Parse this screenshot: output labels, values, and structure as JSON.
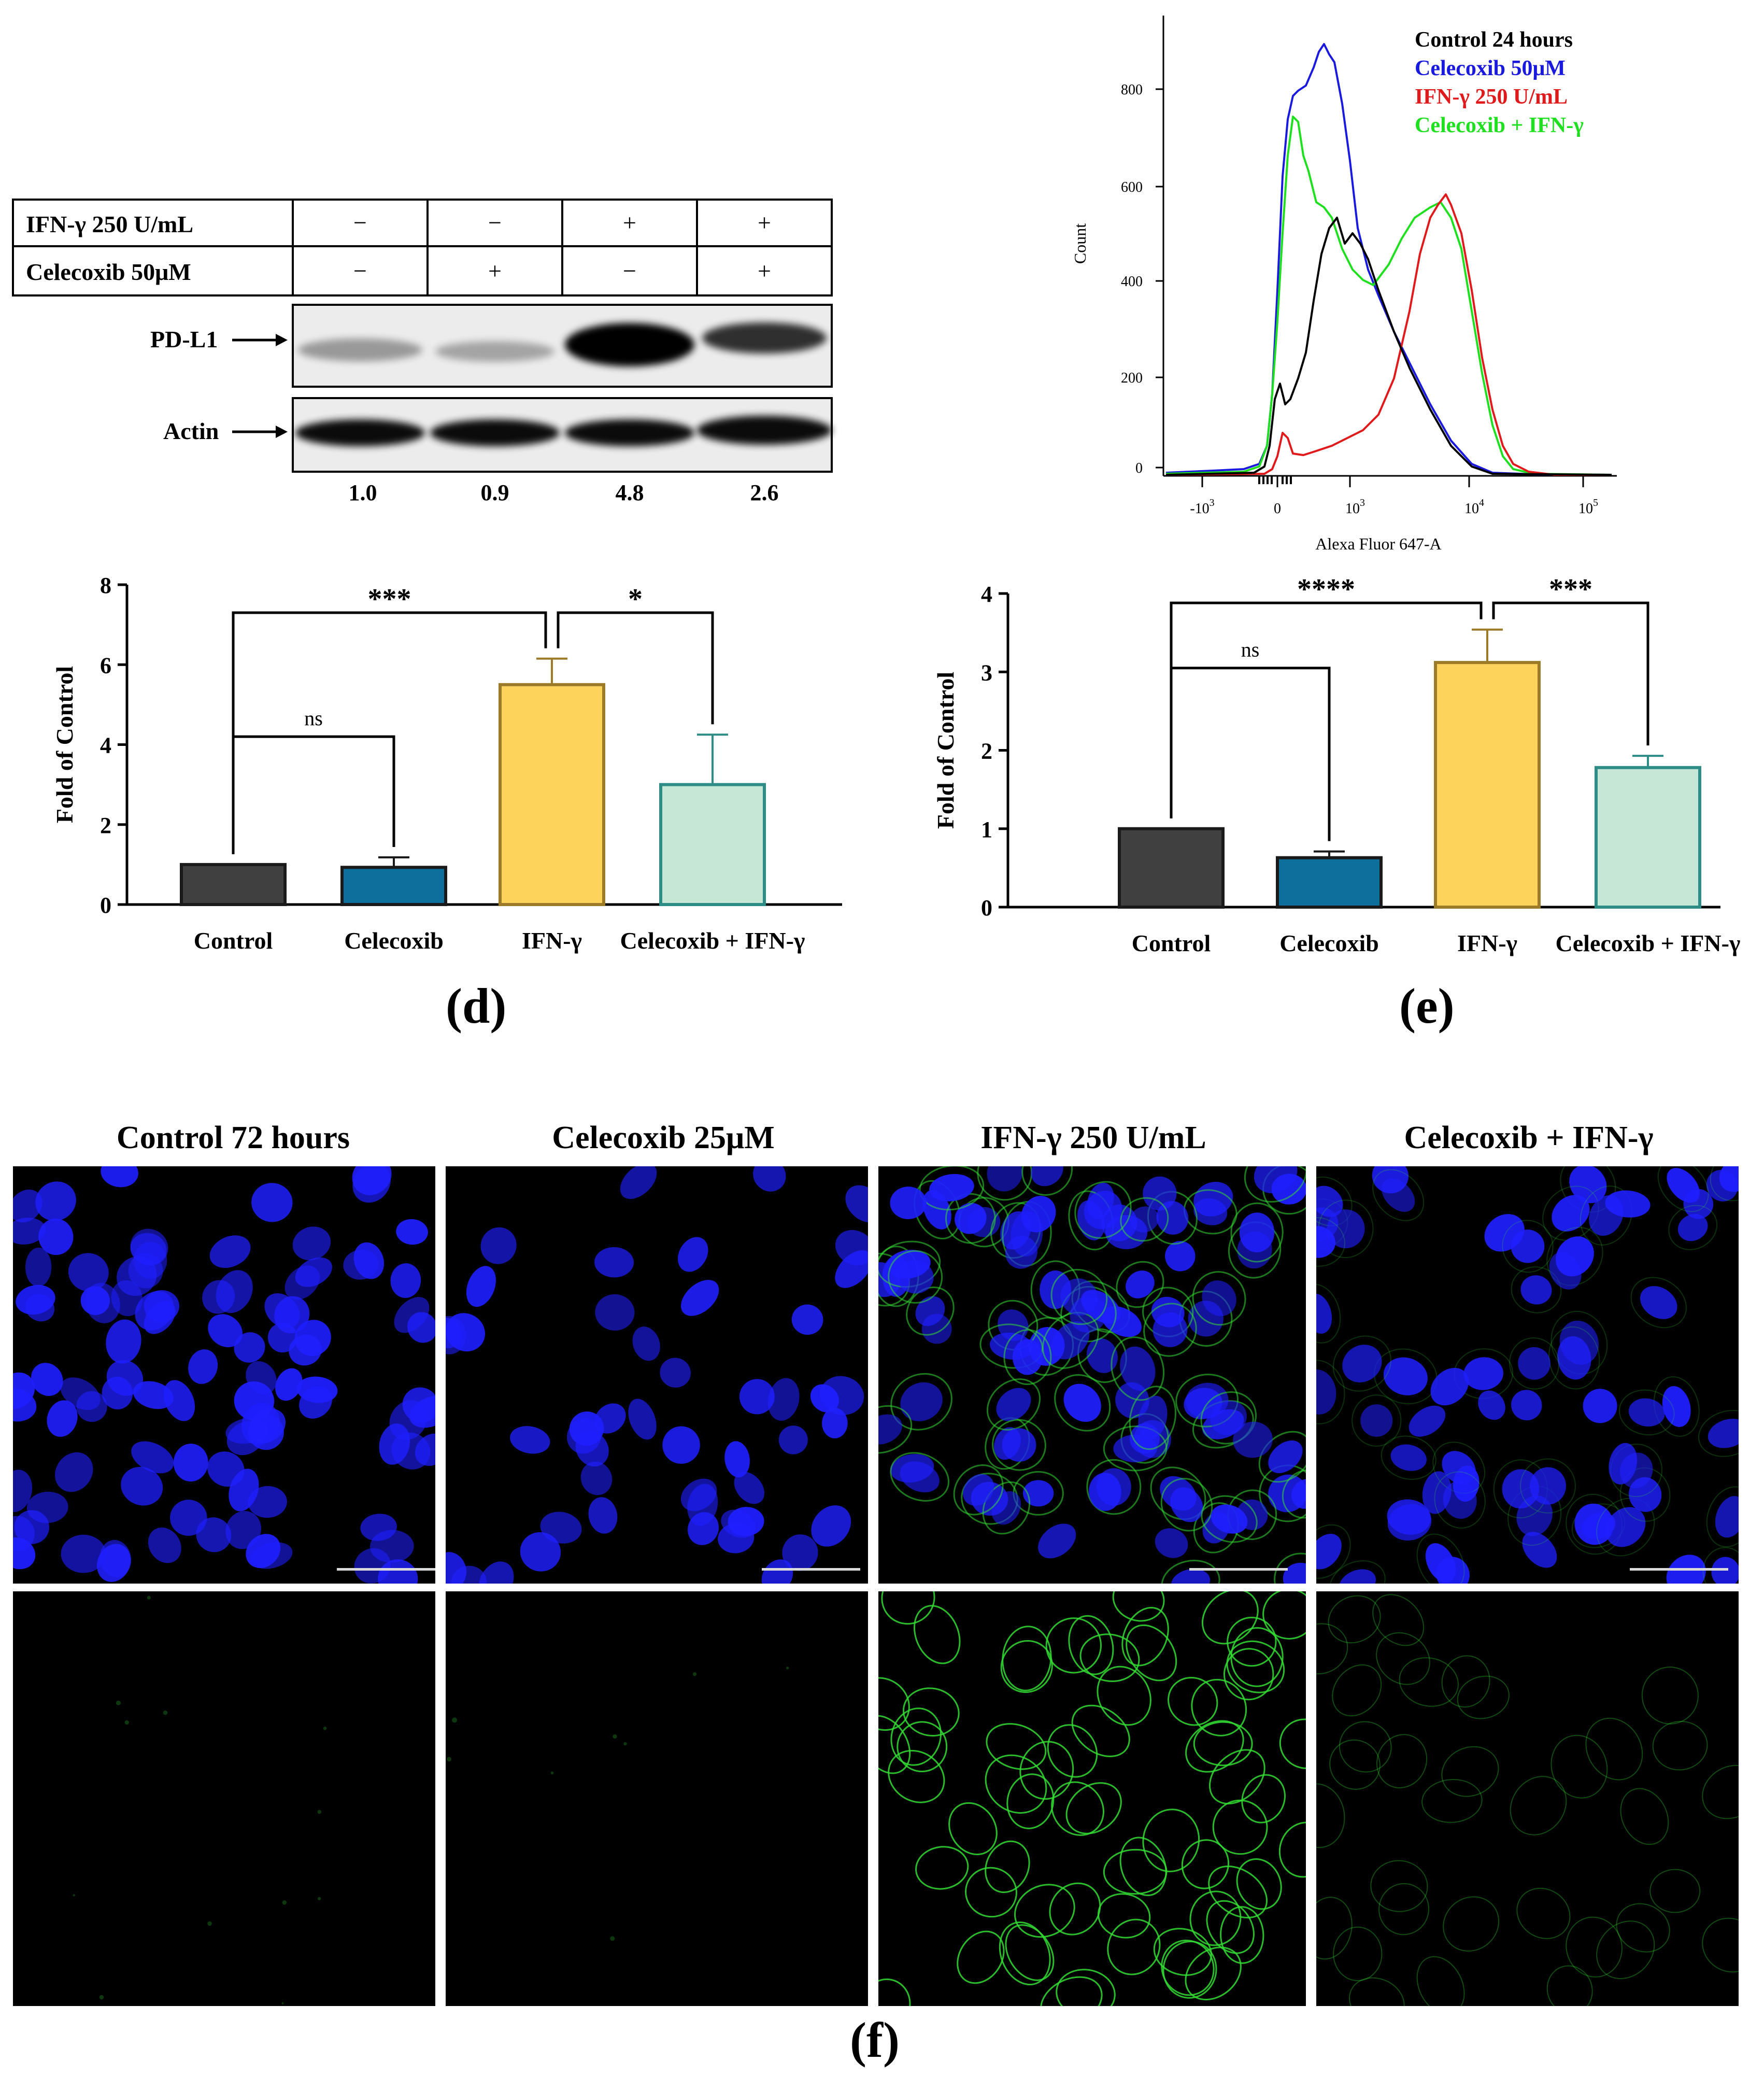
{
  "western_blot": {
    "rows": [
      {
        "label": "IFN-γ 250 U/mL",
        "signs": [
          "−",
          "−",
          "+",
          "+"
        ]
      },
      {
        "label": "Celecoxib 50μM",
        "signs": [
          "−",
          "+",
          "−",
          "+"
        ]
      }
    ],
    "bands": [
      {
        "label": "PD-L1",
        "intensities": [
          0.35,
          0.3,
          1.0,
          0.8
        ]
      },
      {
        "label": "Actin",
        "intensities": [
          0.95,
          0.95,
          0.95,
          0.95
        ]
      }
    ],
    "quant": [
      "1.0",
      "0.9",
      "4.8",
      "2.6"
    ]
  },
  "flow": {
    "ylabel": "Count",
    "xlabel": "Alexa Fluor 647-A",
    "yticks": [
      "0",
      "200",
      "400",
      "600",
      "800"
    ],
    "legend": [
      {
        "name": "Control 24 hours",
        "color": "#000000"
      },
      {
        "name": "Celecoxib 50μM",
        "color": "#1a1adf"
      },
      {
        "name": "IFN-γ 250 U/mL",
        "color": "#e01a1a"
      },
      {
        "name": "Celecoxib + IFN-γ",
        "color": "#1ee01e"
      }
    ]
  },
  "chart_data": [
    {
      "type": "bar",
      "panel": "(d)",
      "categories": [
        "Control",
        "Celecoxib",
        "IFN-γ",
        "Celecoxib + IFN-γ"
      ],
      "values": [
        1.0,
        0.93,
        5.5,
        3.0
      ],
      "errors": [
        0,
        0.25,
        0.65,
        1.25
      ],
      "colors": [
        "#404040",
        "#0e6f9d",
        "#fdd35c",
        "#c6e7d6"
      ],
      "edge_colors": [
        "#1a1a1a",
        "#1a1a1a",
        "#9b7a28",
        "#2e8c86"
      ],
      "ylabel": "Fold of Control",
      "ylim": [
        0,
        8
      ],
      "yticks": [
        "0",
        "2",
        "4",
        "6",
        "8"
      ],
      "significance": [
        {
          "from": 0,
          "to": 1,
          "label": "ns"
        },
        {
          "from": 0,
          "to": 2,
          "label": "***"
        },
        {
          "from": 2,
          "to": 3,
          "label": "*"
        }
      ]
    },
    {
      "type": "bar",
      "panel": "(e)",
      "categories": [
        "Control",
        "Celecoxib",
        "IFN-γ",
        "Celecoxib + IFN-γ"
      ],
      "values": [
        1.0,
        0.63,
        3.12,
        1.78
      ],
      "errors": [
        0,
        0.08,
        0.42,
        0.15
      ],
      "colors": [
        "#404040",
        "#0e6f9d",
        "#fdd35c",
        "#c6e7d6"
      ],
      "edge_colors": [
        "#1a1a1a",
        "#1a1a1a",
        "#9b7a28",
        "#2e8c86"
      ],
      "ylabel": "Fold of Control",
      "ylim": [
        0,
        4
      ],
      "yticks": [
        "0",
        "1",
        "2",
        "3",
        "4"
      ],
      "significance": [
        {
          "from": 0,
          "to": 1,
          "label": "ns"
        },
        {
          "from": 0,
          "to": 2,
          "label": "****"
        },
        {
          "from": 2,
          "to": 3,
          "label": "***"
        }
      ]
    }
  ],
  "figure_labels": {
    "d": "(d)",
    "e": "(e)",
    "f": "(f)"
  },
  "microscopy": {
    "conditions": [
      "Control 72 hours",
      "Celecoxib 25μM",
      "IFN-γ 250 U/mL",
      "Celecoxib + IFN-γ"
    ],
    "green_level": [
      0.05,
      0.05,
      1.0,
      0.4
    ],
    "colors": {
      "dapi": "#1f1fff",
      "pdl1": "#33dd33"
    }
  }
}
